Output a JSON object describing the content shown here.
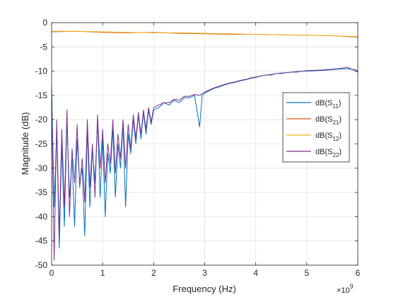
{
  "chart_data": {
    "type": "line",
    "title": "",
    "xlabel": "Frequency (Hz)",
    "ylabel": "Magnitude (dB)",
    "x_multiplier": "×10",
    "x_multiplier_exponent": "9",
    "xlim": [
      0,
      6
    ],
    "ylim": [
      -50,
      0
    ],
    "xticks": [
      0,
      1,
      2,
      3,
      4,
      5,
      6
    ],
    "xtick_labels": [
      "0",
      "1",
      "2",
      "3",
      "4",
      "5",
      "6"
    ],
    "yticks": [
      0,
      -5,
      -10,
      -15,
      -20,
      -25,
      -30,
      -35,
      -40,
      -45,
      -50
    ],
    "ytick_labels": [
      "0",
      "-5",
      "-10",
      "-15",
      "-20",
      "-25",
      "-30",
      "-35",
      "-40",
      "-45",
      "-50"
    ],
    "grid": true,
    "legend_position": "right",
    "series": [
      {
        "name": "dB(S11)",
        "legend_main": "dB(S",
        "legend_sub": "11",
        "legend_close": ")",
        "color": "#0072BD",
        "x": [
          0.0,
          0.05,
          0.1,
          0.15,
          0.2,
          0.25,
          0.3,
          0.35,
          0.4,
          0.45,
          0.5,
          0.55,
          0.6,
          0.65,
          0.7,
          0.75,
          0.8,
          0.85,
          0.9,
          0.95,
          1.0,
          1.05,
          1.1,
          1.15,
          1.2,
          1.25,
          1.3,
          1.35,
          1.4,
          1.45,
          1.5,
          1.55,
          1.6,
          1.65,
          1.7,
          1.75,
          1.8,
          1.85,
          1.9,
          1.95,
          2.0,
          2.1,
          2.2,
          2.3,
          2.4,
          2.5,
          2.6,
          2.7,
          2.8,
          2.9,
          2.95,
          3.0,
          3.1,
          3.2,
          3.3,
          3.4,
          3.5,
          3.6,
          3.7,
          3.8,
          3.9,
          4.0,
          4.1,
          4.2,
          4.3,
          4.4,
          4.5,
          4.6,
          4.7,
          4.8,
          4.9,
          5.0,
          5.2,
          5.4,
          5.6,
          5.8,
          6.0
        ],
        "y": [
          -13,
          -38,
          -22,
          -46.5,
          -25,
          -42,
          -20,
          -36,
          -28,
          -42,
          -24,
          -33,
          -30,
          -44,
          -22,
          -38,
          -26,
          -33,
          -20,
          -36,
          -24,
          -40,
          -27,
          -31,
          -22,
          -36,
          -25,
          -30,
          -21,
          -38,
          -23,
          -27,
          -20,
          -25,
          -19,
          -24,
          -18.5,
          -23,
          -18,
          -21,
          -18,
          -17.5,
          -16.5,
          -17,
          -16,
          -16.5,
          -15.5,
          -15.5,
          -15,
          -21.5,
          -15,
          -14.5,
          -14,
          -13.5,
          -13.2,
          -12.8,
          -12.5,
          -12.3,
          -12,
          -11.8,
          -11.5,
          -11.3,
          -11,
          -10.8,
          -10.8,
          -10.5,
          -10.5,
          -10.3,
          -10.2,
          -10.2,
          -10,
          -10,
          -9.9,
          -9.8,
          -9.6,
          -9.5,
          -9.8
        ]
      },
      {
        "name": "dB(S21)",
        "legend_main": "dB(S",
        "legend_sub": "21",
        "legend_close": ")",
        "color": "#D95319",
        "x": [
          0.0,
          0.5,
          1.0,
          1.5,
          2.0,
          2.5,
          3.0,
          3.5,
          4.0,
          4.5,
          5.0,
          5.5,
          6.0
        ],
        "y": [
          -1.9,
          -1.8,
          -2.0,
          -2.1,
          -2.0,
          -2.2,
          -2.3,
          -2.4,
          -2.4,
          -2.5,
          -2.6,
          -2.7,
          -3.0
        ]
      },
      {
        "name": "dB(S12)",
        "legend_main": "dB(S",
        "legend_sub": "12",
        "legend_close": ")",
        "color": "#EDB120",
        "x": [
          0.0,
          0.5,
          1.0,
          1.5,
          2.0,
          2.5,
          3.0,
          3.5,
          4.0,
          4.5,
          5.0,
          5.5,
          6.0
        ],
        "y": [
          -1.8,
          -1.8,
          -1.9,
          -2.0,
          -2.1,
          -2.1,
          -2.2,
          -2.3,
          -2.4,
          -2.5,
          -2.6,
          -2.7,
          -2.9
        ]
      },
      {
        "name": "dB(S22)",
        "legend_main": "dB(S",
        "legend_sub": "22",
        "legend_close": ")",
        "color": "#7E2F8E",
        "x": [
          0.0,
          0.05,
          0.1,
          0.15,
          0.2,
          0.25,
          0.3,
          0.35,
          0.4,
          0.45,
          0.5,
          0.55,
          0.6,
          0.65,
          0.7,
          0.75,
          0.8,
          0.85,
          0.9,
          0.95,
          1.0,
          1.05,
          1.1,
          1.15,
          1.2,
          1.25,
          1.3,
          1.35,
          1.4,
          1.45,
          1.5,
          1.55,
          1.6,
          1.65,
          1.7,
          1.75,
          1.8,
          1.85,
          1.9,
          1.95,
          2.0,
          2.1,
          2.2,
          2.3,
          2.4,
          2.5,
          2.6,
          2.7,
          2.8,
          2.9,
          3.0,
          3.1,
          3.2,
          3.3,
          3.4,
          3.5,
          3.6,
          3.7,
          3.8,
          3.9,
          4.0,
          4.1,
          4.2,
          4.3,
          4.4,
          4.5,
          4.6,
          4.7,
          4.8,
          4.9,
          5.0,
          5.2,
          5.4,
          5.6,
          5.8,
          6.0
        ],
        "y": [
          -16,
          -49,
          -20,
          -44,
          -22,
          -38,
          -18,
          -40,
          -26,
          -33,
          -21,
          -34,
          -28,
          -37,
          -20,
          -34,
          -25,
          -36,
          -19,
          -30,
          -22,
          -33,
          -25,
          -29,
          -20,
          -31,
          -23,
          -28,
          -20,
          -30,
          -21,
          -26,
          -19,
          -24,
          -18.5,
          -23,
          -18,
          -22,
          -17.5,
          -20.5,
          -17.5,
          -17,
          -16.5,
          -16.5,
          -15.8,
          -16,
          -15.2,
          -15.2,
          -14.8,
          -15,
          -14.3,
          -13.8,
          -13.4,
          -13,
          -12.7,
          -12.4,
          -12.2,
          -11.9,
          -11.7,
          -11.4,
          -11.2,
          -11,
          -10.8,
          -10.7,
          -10.5,
          -10.4,
          -10.3,
          -10.2,
          -10.1,
          -10,
          -9.9,
          -9.8,
          -9.7,
          -9.5,
          -9.2,
          -10.2
        ]
      }
    ]
  }
}
